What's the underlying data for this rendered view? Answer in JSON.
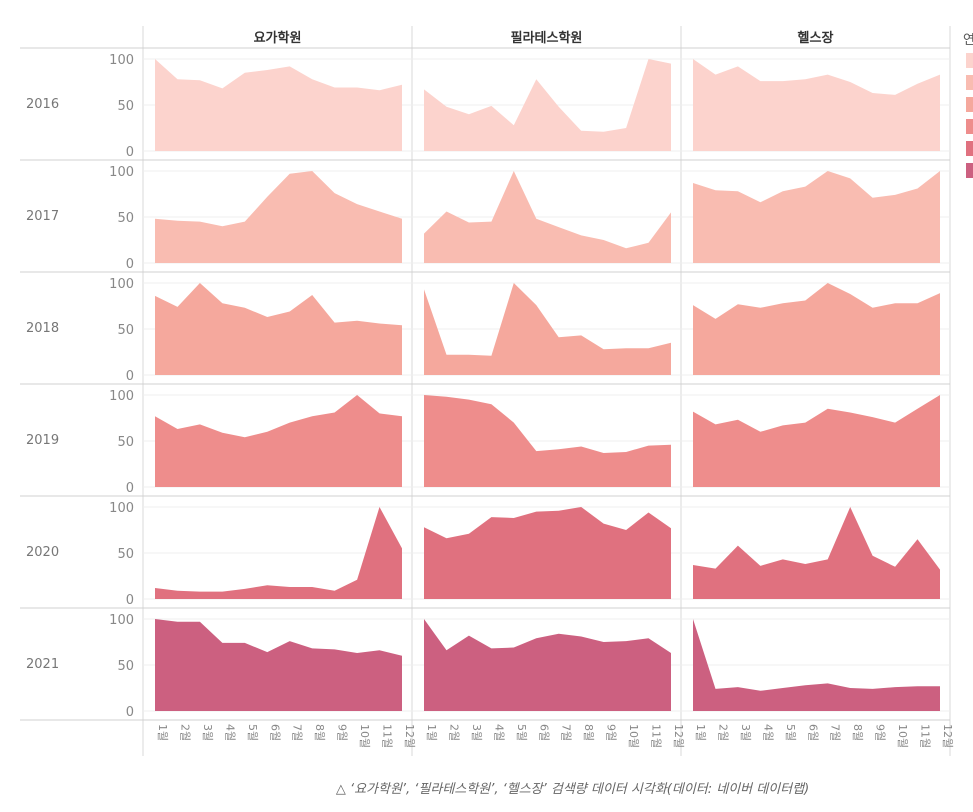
{
  "chart_data": {
    "type": "area",
    "layout": "small-multiples",
    "columns": [
      "요가학원",
      "필라테스학원",
      "헬스장"
    ],
    "rows": [
      "2016",
      "2017",
      "2018",
      "2019",
      "2020",
      "2021"
    ],
    "x": [
      "1월",
      "2월",
      "3월",
      "4월",
      "5월",
      "6월",
      "7월",
      "8월",
      "9월",
      "10월",
      "11월",
      "12월"
    ],
    "yticks": [
      0,
      50,
      100
    ],
    "ylim": [
      0,
      100
    ],
    "grid": true,
    "legend": {
      "title": "연",
      "placement": "right",
      "colors": [
        "#fcd3cd",
        "#f9bcb1",
        "#f5a89d",
        "#ee8d8c",
        "#e0717f",
        "#cc6080"
      ]
    },
    "row_colors": {
      "2016": "#fcd3cd",
      "2017": "#f9bcb1",
      "2018": "#f5a89d",
      "2019": "#ee8d8c",
      "2020": "#e0717f",
      "2021": "#cc6080"
    },
    "series": [
      {
        "row": "2016",
        "column": "요가학원",
        "values": [
          100,
          78,
          77,
          68,
          85,
          88,
          92,
          78,
          69,
          69,
          66,
          72
        ]
      },
      {
        "row": "2016",
        "column": "필라테스학원",
        "values": [
          67,
          48,
          40,
          49,
          28,
          78,
          48,
          22,
          21,
          25,
          100,
          95
        ]
      },
      {
        "row": "2016",
        "column": "헬스장",
        "values": [
          100,
          83,
          92,
          76,
          76,
          78,
          83,
          75,
          63,
          61,
          73,
          83
        ]
      },
      {
        "row": "2017",
        "column": "요가학원",
        "values": [
          48,
          46,
          45,
          40,
          45,
          72,
          97,
          100,
          76,
          64,
          56,
          48
        ]
      },
      {
        "row": "2017",
        "column": "필라테스학원",
        "values": [
          32,
          56,
          44,
          45,
          100,
          48,
          39,
          30,
          25,
          16,
          22,
          55
        ]
      },
      {
        "row": "2017",
        "column": "헬스장",
        "values": [
          87,
          79,
          78,
          66,
          78,
          83,
          100,
          92,
          71,
          74,
          81,
          100
        ]
      },
      {
        "row": "2018",
        "column": "요가학원",
        "values": [
          86,
          74,
          100,
          78,
          73,
          63,
          69,
          87,
          57,
          59,
          56,
          54
        ]
      },
      {
        "row": "2018",
        "column": "필라테스학원",
        "values": [
          93,
          22,
          22,
          21,
          100,
          76,
          41,
          43,
          28,
          29,
          29,
          35
        ]
      },
      {
        "row": "2018",
        "column": "헬스장",
        "values": [
          76,
          61,
          77,
          73,
          78,
          81,
          100,
          88,
          73,
          78,
          78,
          89
        ]
      },
      {
        "row": "2019",
        "column": "요가학원",
        "values": [
          77,
          63,
          68,
          59,
          54,
          60,
          70,
          77,
          81,
          100,
          80,
          77
        ]
      },
      {
        "row": "2019",
        "column": "필라테스학원",
        "values": [
          100,
          98,
          95,
          90,
          70,
          39,
          41,
          44,
          37,
          38,
          45,
          46
        ]
      },
      {
        "row": "2019",
        "column": "헬스장",
        "values": [
          82,
          68,
          73,
          60,
          67,
          70,
          85,
          81,
          76,
          70,
          85,
          100
        ]
      },
      {
        "row": "2020",
        "column": "요가학원",
        "values": [
          12,
          9,
          8,
          8,
          11,
          15,
          13,
          13,
          9,
          21,
          100,
          55
        ]
      },
      {
        "row": "2020",
        "column": "필라테스학원",
        "values": [
          78,
          66,
          71,
          89,
          88,
          95,
          96,
          100,
          82,
          75,
          94,
          77
        ]
      },
      {
        "row": "2020",
        "column": "헬스장",
        "values": [
          37,
          33,
          58,
          36,
          43,
          38,
          43,
          100,
          47,
          35,
          65,
          32
        ]
      },
      {
        "row": "2021",
        "column": "요가학원",
        "values": [
          100,
          97,
          97,
          74,
          74,
          64,
          76,
          68,
          67,
          63,
          66,
          60
        ]
      },
      {
        "row": "2021",
        "column": "필라테스학원",
        "values": [
          100,
          66,
          82,
          68,
          69,
          79,
          84,
          81,
          75,
          76,
          79,
          63
        ]
      },
      {
        "row": "2021",
        "column": "헬스장",
        "values": [
          100,
          24,
          26,
          22,
          25,
          28,
          30,
          25,
          24,
          26,
          27,
          27
        ]
      }
    ]
  },
  "caption": "△ ‘요가학원’, ‘필라테스학원’, ‘헬스장’ 검색량 데이터 시각화(데이터: 네이버 데이터랩)"
}
